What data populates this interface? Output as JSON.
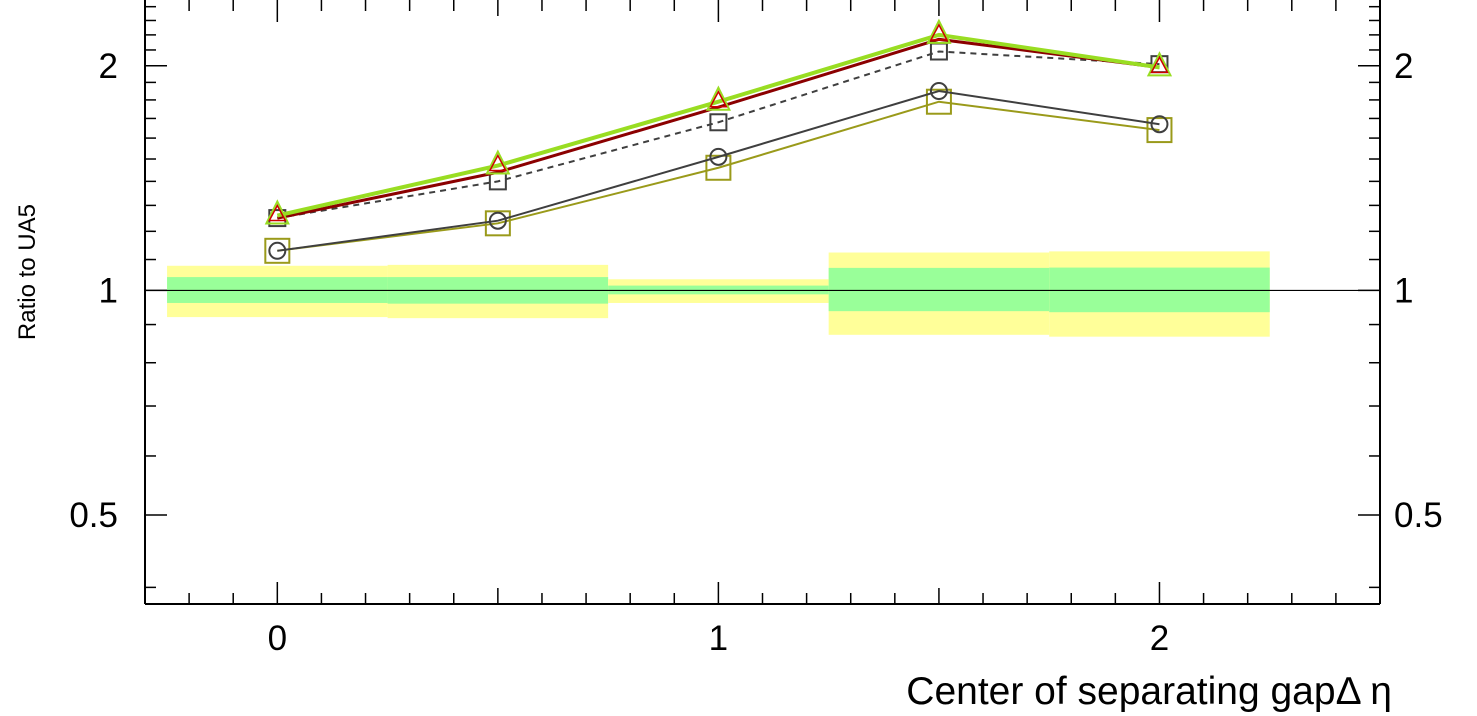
{
  "chart_data": {
    "type": "line",
    "xlabel": "Center of separating gapΔ η",
    "ylabel": "Ratio to UA5",
    "xlim": [
      -0.3,
      2.5
    ],
    "ylim": [
      0.38,
      2.45
    ],
    "yscale": "log",
    "x_ticks": [
      0,
      1,
      2
    ],
    "x_tick_labels": [
      "0",
      "1",
      "2"
    ],
    "y_ticks": [
      0.5,
      1,
      2
    ],
    "y_tick_labels": [
      "0.5",
      "1",
      "2"
    ],
    "reference_line": 1,
    "uncertainty_bands": [
      {
        "xmin": -0.25,
        "xmax": 0.25,
        "inner": [
          0.962,
          1.042
        ],
        "outer": [
          0.921,
          1.079
        ]
      },
      {
        "xmin": 0.25,
        "xmax": 0.75,
        "inner": [
          0.96,
          1.042
        ],
        "outer": [
          0.918,
          1.082
        ]
      },
      {
        "xmin": 0.75,
        "xmax": 1.25,
        "inner": [
          0.988,
          1.015
        ],
        "outer": [
          0.962,
          1.035
        ]
      },
      {
        "xmin": 1.25,
        "xmax": 1.75,
        "inner": [
          0.938,
          1.072
        ],
        "outer": [
          0.872,
          1.124
        ]
      },
      {
        "xmin": 1.75,
        "xmax": 2.25,
        "inner": [
          0.935,
          1.073
        ],
        "outer": [
          0.867,
          1.128
        ]
      }
    ],
    "band_colors": {
      "inner": "#99ff99",
      "outer": "#ffff99"
    },
    "x": [
      0,
      0.5,
      1,
      1.5,
      2
    ],
    "series": [
      {
        "values": [
          1.13,
          1.23,
          1.46,
          1.79,
          1.64
        ],
        "color": "#9a9a1a",
        "marker": "square-large",
        "line": "solid",
        "width": 2
      },
      {
        "values": [
          1.13,
          1.24,
          1.51,
          1.85,
          1.67
        ],
        "color": "#3f3f3f",
        "marker": "circle",
        "line": "solid",
        "width": 2
      },
      {
        "values": [
          1.25,
          1.4,
          1.68,
          2.09,
          2.01
        ],
        "color": "#3f3f3f",
        "marker": "square-small",
        "line": "dashed",
        "width": 2
      },
      {
        "values": [
          1.25,
          1.44,
          1.76,
          2.17,
          1.99
        ],
        "color": "#8b0000",
        "marker": "none",
        "line": "solid",
        "width": 3
      },
      {
        "values": [
          1.26,
          1.47,
          1.79,
          2.2,
          1.99
        ],
        "color": "#99dd22",
        "marker": "triangle",
        "line": "solid",
        "width": 4
      }
    ]
  }
}
